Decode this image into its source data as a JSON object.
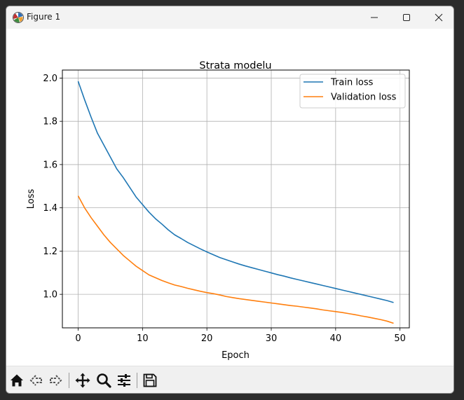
{
  "window": {
    "title": "Figure 1",
    "icons": {
      "app": "matplotlib-figure-icon",
      "minimize": "minimize-icon",
      "maximize": "maximize-icon",
      "close": "close-icon"
    }
  },
  "toolbar": {
    "icons": [
      "home-icon",
      "back-arrow-icon",
      "forward-arrow-icon",
      "pan-move-icon",
      "zoom-magnifier-icon",
      "configure-subplots-icon",
      "save-floppy-icon"
    ]
  },
  "chart_data": {
    "type": "line",
    "title": "Strata modelu",
    "xlabel": "Epoch",
    "ylabel": "Loss",
    "xlim": [
      -2.45,
      51.45
    ],
    "ylim": [
      0.845,
      2.037
    ],
    "xticks": [
      "0",
      "10",
      "20",
      "30",
      "40",
      "50"
    ],
    "yticks": [
      "1.0",
      "1.2",
      "1.4",
      "1.6",
      "1.8",
      "2.0"
    ],
    "grid": true,
    "legend_position": "upper right",
    "series": [
      {
        "name": "Train loss",
        "color": "#1f77b4",
        "x": [
          0,
          1,
          2,
          3,
          4,
          5,
          6,
          7,
          8,
          9,
          10,
          11,
          12,
          13,
          14,
          15,
          16,
          17,
          18,
          19,
          20,
          21,
          22,
          23,
          24,
          25,
          26,
          27,
          28,
          29,
          30,
          31,
          32,
          33,
          34,
          35,
          36,
          37,
          38,
          39,
          40,
          41,
          42,
          43,
          44,
          45,
          46,
          47,
          48,
          49
        ],
        "values": [
          1.985,
          1.9,
          1.82,
          1.745,
          1.69,
          1.635,
          1.58,
          1.54,
          1.495,
          1.45,
          1.415,
          1.38,
          1.35,
          1.325,
          1.298,
          1.275,
          1.258,
          1.24,
          1.225,
          1.21,
          1.196,
          1.183,
          1.17,
          1.16,
          1.15,
          1.14,
          1.131,
          1.123,
          1.115,
          1.107,
          1.099,
          1.091,
          1.084,
          1.076,
          1.069,
          1.062,
          1.055,
          1.048,
          1.041,
          1.034,
          1.027,
          1.02,
          1.013,
          1.006,
          0.999,
          0.992,
          0.985,
          0.978,
          0.971,
          0.962
        ]
      },
      {
        "name": "Validation loss",
        "color": "#ff7f0e",
        "x": [
          0,
          1,
          2,
          3,
          4,
          5,
          6,
          7,
          8,
          9,
          10,
          11,
          12,
          13,
          14,
          15,
          16,
          17,
          18,
          19,
          20,
          21,
          22,
          23,
          24,
          25,
          26,
          27,
          28,
          29,
          30,
          31,
          32,
          33,
          34,
          35,
          36,
          37,
          38,
          39,
          40,
          41,
          42,
          43,
          44,
          45,
          46,
          47,
          48,
          49
        ],
        "values": [
          1.455,
          1.4,
          1.355,
          1.315,
          1.275,
          1.24,
          1.21,
          1.18,
          1.155,
          1.13,
          1.11,
          1.09,
          1.077,
          1.064,
          1.053,
          1.043,
          1.036,
          1.028,
          1.021,
          1.014,
          1.008,
          1.003,
          0.997,
          0.99,
          0.985,
          0.98,
          0.976,
          0.972,
          0.968,
          0.964,
          0.96,
          0.956,
          0.952,
          0.948,
          0.945,
          0.941,
          0.937,
          0.933,
          0.928,
          0.924,
          0.92,
          0.916,
          0.911,
          0.906,
          0.9,
          0.895,
          0.889,
          0.883,
          0.876,
          0.866
        ]
      }
    ]
  }
}
